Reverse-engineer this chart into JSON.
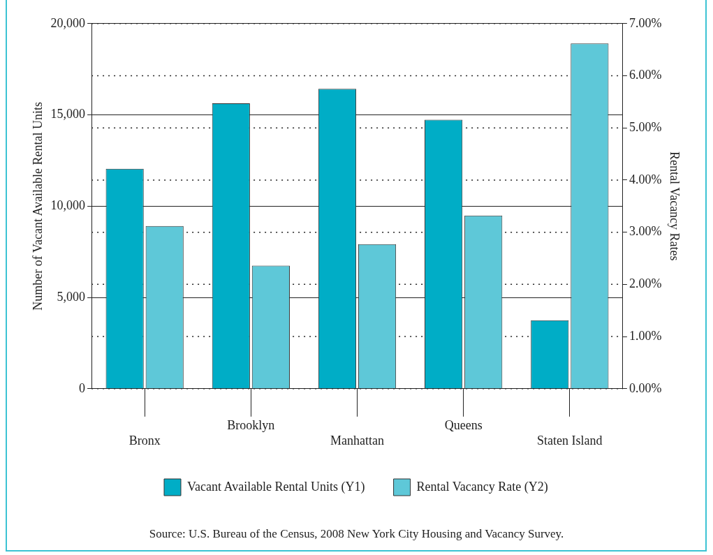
{
  "chart_data": {
    "type": "bar",
    "xlabel": null,
    "ylabel": "Number of Vacant Available Rental Units",
    "y2label": "Rental Vacancy Rates",
    "categories": [
      "Bronx",
      "Brooklyn",
      "Manhattan",
      "Queens",
      "Staten Island"
    ],
    "series": [
      {
        "name": "Vacant Available Rental Units (Y1)",
        "color": "#00adc6",
        "values": [
          12050,
          15630,
          16430,
          14730,
          3750
        ]
      },
      {
        "name": "Rental Vacancy Rate (Y2)",
        "color": "#5ec8d8",
        "axis": "y2",
        "values": [
          3.12,
          2.36,
          2.77,
          3.32,
          6.62
        ]
      }
    ],
    "ylim": [
      0,
      20000
    ],
    "yticks": [
      {
        "value": 0,
        "label": "0"
      },
      {
        "value": 5000,
        "label": "5,000"
      },
      {
        "value": 10000,
        "label": "10,000"
      },
      {
        "value": 15000,
        "label": "15,000"
      },
      {
        "value": 20000,
        "label": "20,000"
      }
    ],
    "y2lim": [
      0,
      7
    ],
    "y2ticks": [
      {
        "value": 0,
        "label": "0.00%"
      },
      {
        "value": 1,
        "label": "1.00%"
      },
      {
        "value": 2,
        "label": "2.00%"
      },
      {
        "value": 3,
        "label": "3.00%"
      },
      {
        "value": 4,
        "label": "4.00%"
      },
      {
        "value": 5,
        "label": "5.00%"
      },
      {
        "value": 6,
        "label": "6.00%"
      },
      {
        "value": 7,
        "label": "7.00%"
      }
    ],
    "grid": "y",
    "legend": "bottom",
    "annotations": [
      "Source:  U.S. Bureau of the Census, 2008 New York City Housing and Vacancy Survey."
    ]
  }
}
